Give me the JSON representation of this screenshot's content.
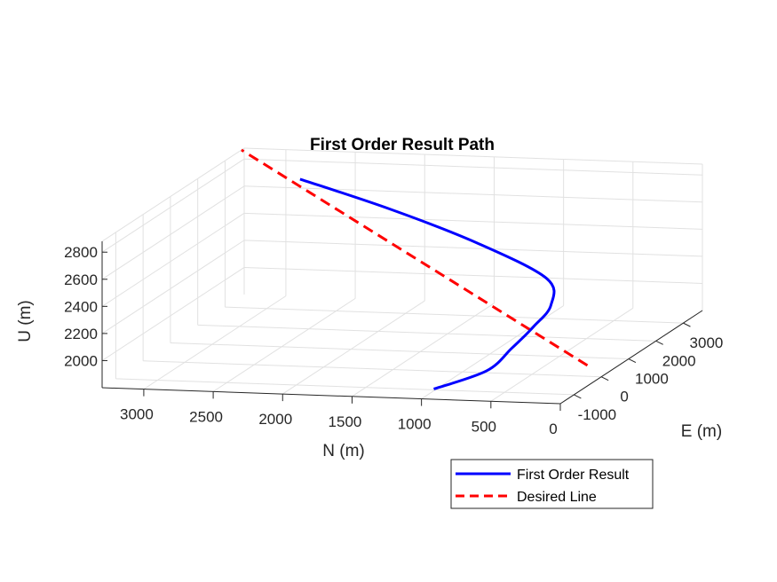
{
  "chart_data": {
    "type": "line",
    "title": "First Order Result Path",
    "xlabel": "N (m)",
    "ylabel": "E (m)",
    "zlabel": "U (m)",
    "n_ticks": [
      "3000",
      "2500",
      "2000",
      "1500",
      "1000",
      "500",
      "0"
    ],
    "e_ticks": [
      "-1000",
      "0",
      "1000",
      "2000",
      "3000"
    ],
    "u_ticks": [
      "2000",
      "2200",
      "2400",
      "2600",
      "2800"
    ],
    "nlim": [
      0,
      3300
    ],
    "elim": [
      -1500,
      3700
    ],
    "ulim": [
      1800,
      2880
    ],
    "grid": true,
    "legend_position": "bottom-right",
    "series": [
      {
        "name": "First Order Result",
        "color": "#0000ff",
        "style": "solid",
        "points": [
          {
            "N": 990,
            "E": -1100,
            "U": 1820
          },
          {
            "N": 670,
            "E": -800,
            "U": 1925
          },
          {
            "N": 570,
            "E": -390,
            "U": 2040
          },
          {
            "N": 520,
            "E": 160,
            "U": 2130
          },
          {
            "N": 540,
            "E": 900,
            "U": 2190
          },
          {
            "N": 710,
            "E": 1600,
            "U": 2290
          },
          {
            "N": 1330,
            "E": 2200,
            "U": 2450
          },
          {
            "N": 2030,
            "E": 2600,
            "U": 2620
          },
          {
            "N": 2750,
            "E": 2950,
            "U": 2770
          }
        ]
      },
      {
        "name": "Desired Line",
        "color": "#ff0000",
        "style": "dashed",
        "points": [
          {
            "N": 100,
            "E": 0,
            "U": 1880
          },
          {
            "N": 3300,
            "E": 3600,
            "U": 2880
          }
        ]
      }
    ]
  }
}
